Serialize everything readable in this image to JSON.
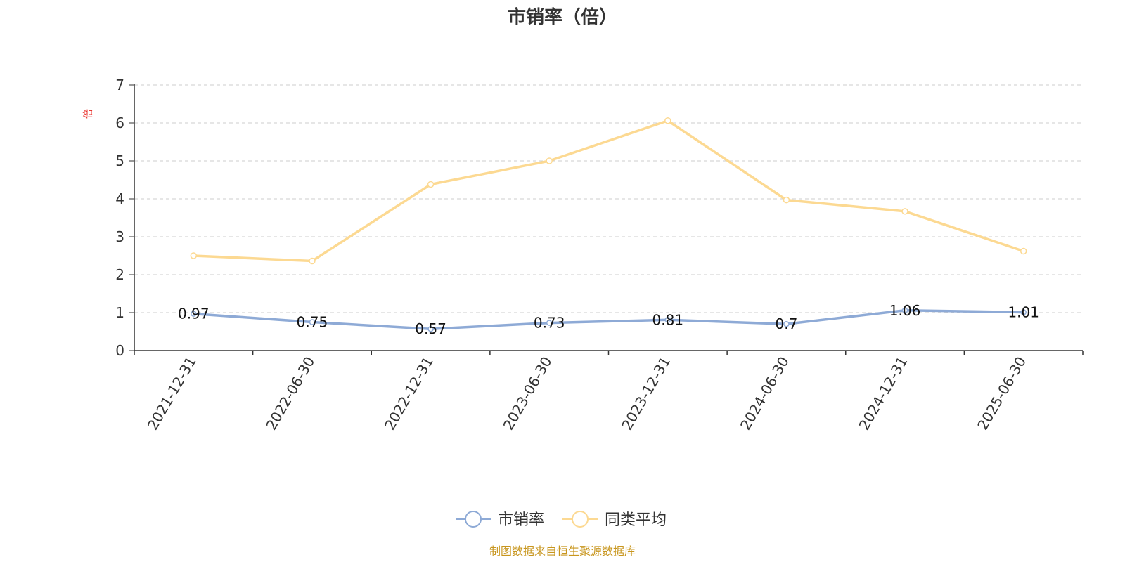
{
  "title": "市销率（倍）",
  "y_unit": "倍",
  "source": "制图数据来自恒生聚源数据库",
  "colors": {
    "series_main": "#8eaad6",
    "series_avg": "#fcd992",
    "unit": "#e8251f",
    "source": "#c8961e",
    "grid": "#cccccc",
    "axis": "#333333"
  },
  "chart_data": {
    "type": "line",
    "title": "市销率（倍）",
    "ylabel": "倍",
    "ylim": [
      0,
      7
    ],
    "yticks": [
      0,
      1,
      2,
      3,
      4,
      5,
      6,
      7
    ],
    "grid": true,
    "legend_position": "bottom-center",
    "categories": [
      "2021-12-31",
      "2022-06-30",
      "2022-12-31",
      "2023-06-30",
      "2023-12-31",
      "2024-06-30",
      "2024-12-31",
      "2025-06-30"
    ],
    "series": [
      {
        "name": "市销率",
        "values": [
          0.97,
          0.75,
          0.57,
          0.73,
          0.81,
          0.7,
          1.06,
          1.01
        ],
        "labels": [
          "0.97",
          "0.75",
          "0.57",
          "0.73",
          "0.81",
          "0.7",
          "1.06",
          "1.01"
        ],
        "show_labels": true
      },
      {
        "name": "同类平均",
        "values": [
          2.5,
          2.36,
          4.38,
          5.0,
          6.06,
          3.97,
          3.67,
          2.62
        ],
        "show_labels": false
      }
    ]
  }
}
